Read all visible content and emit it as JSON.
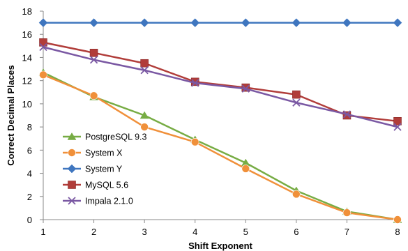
{
  "chart_data": {
    "type": "line",
    "title": "",
    "xlabel": "Shift Exponent",
    "ylabel": "Correct Decimal Places",
    "x": [
      1,
      2,
      3,
      4,
      5,
      6,
      7,
      8
    ],
    "xlim": [
      1,
      8
    ],
    "ylim": [
      0,
      18
    ],
    "yticks": [
      0,
      2,
      4,
      6,
      8,
      10,
      12,
      14,
      16,
      18
    ],
    "grid": false,
    "legend_position": "left",
    "series": [
      {
        "name": "PostgreSQL 9.3",
        "color": "#77ac44",
        "marker": "triangle",
        "values": [
          12.7,
          10.6,
          9.0,
          6.9,
          4.9,
          2.5,
          0.7,
          0.0
        ]
      },
      {
        "name": "System X",
        "color": "#f0903a",
        "marker": "circle",
        "values": [
          12.5,
          10.7,
          8.0,
          6.7,
          4.4,
          2.2,
          0.6,
          0.0
        ]
      },
      {
        "name": "System Y",
        "color": "#3f76bf",
        "marker": "diamond",
        "values": [
          17,
          17,
          17,
          17,
          17,
          17,
          17,
          17
        ]
      },
      {
        "name": "MySQL 5.6",
        "color": "#b13d3a",
        "marker": "square",
        "values": [
          15.3,
          14.4,
          13.5,
          11.9,
          11.4,
          10.8,
          9.0,
          8.5
        ]
      },
      {
        "name": "Impala 2.1.0",
        "color": "#7a58a3",
        "marker": "x",
        "values": [
          14.9,
          13.8,
          12.9,
          11.8,
          11.3,
          10.1,
          9.1,
          8.0
        ]
      }
    ]
  }
}
